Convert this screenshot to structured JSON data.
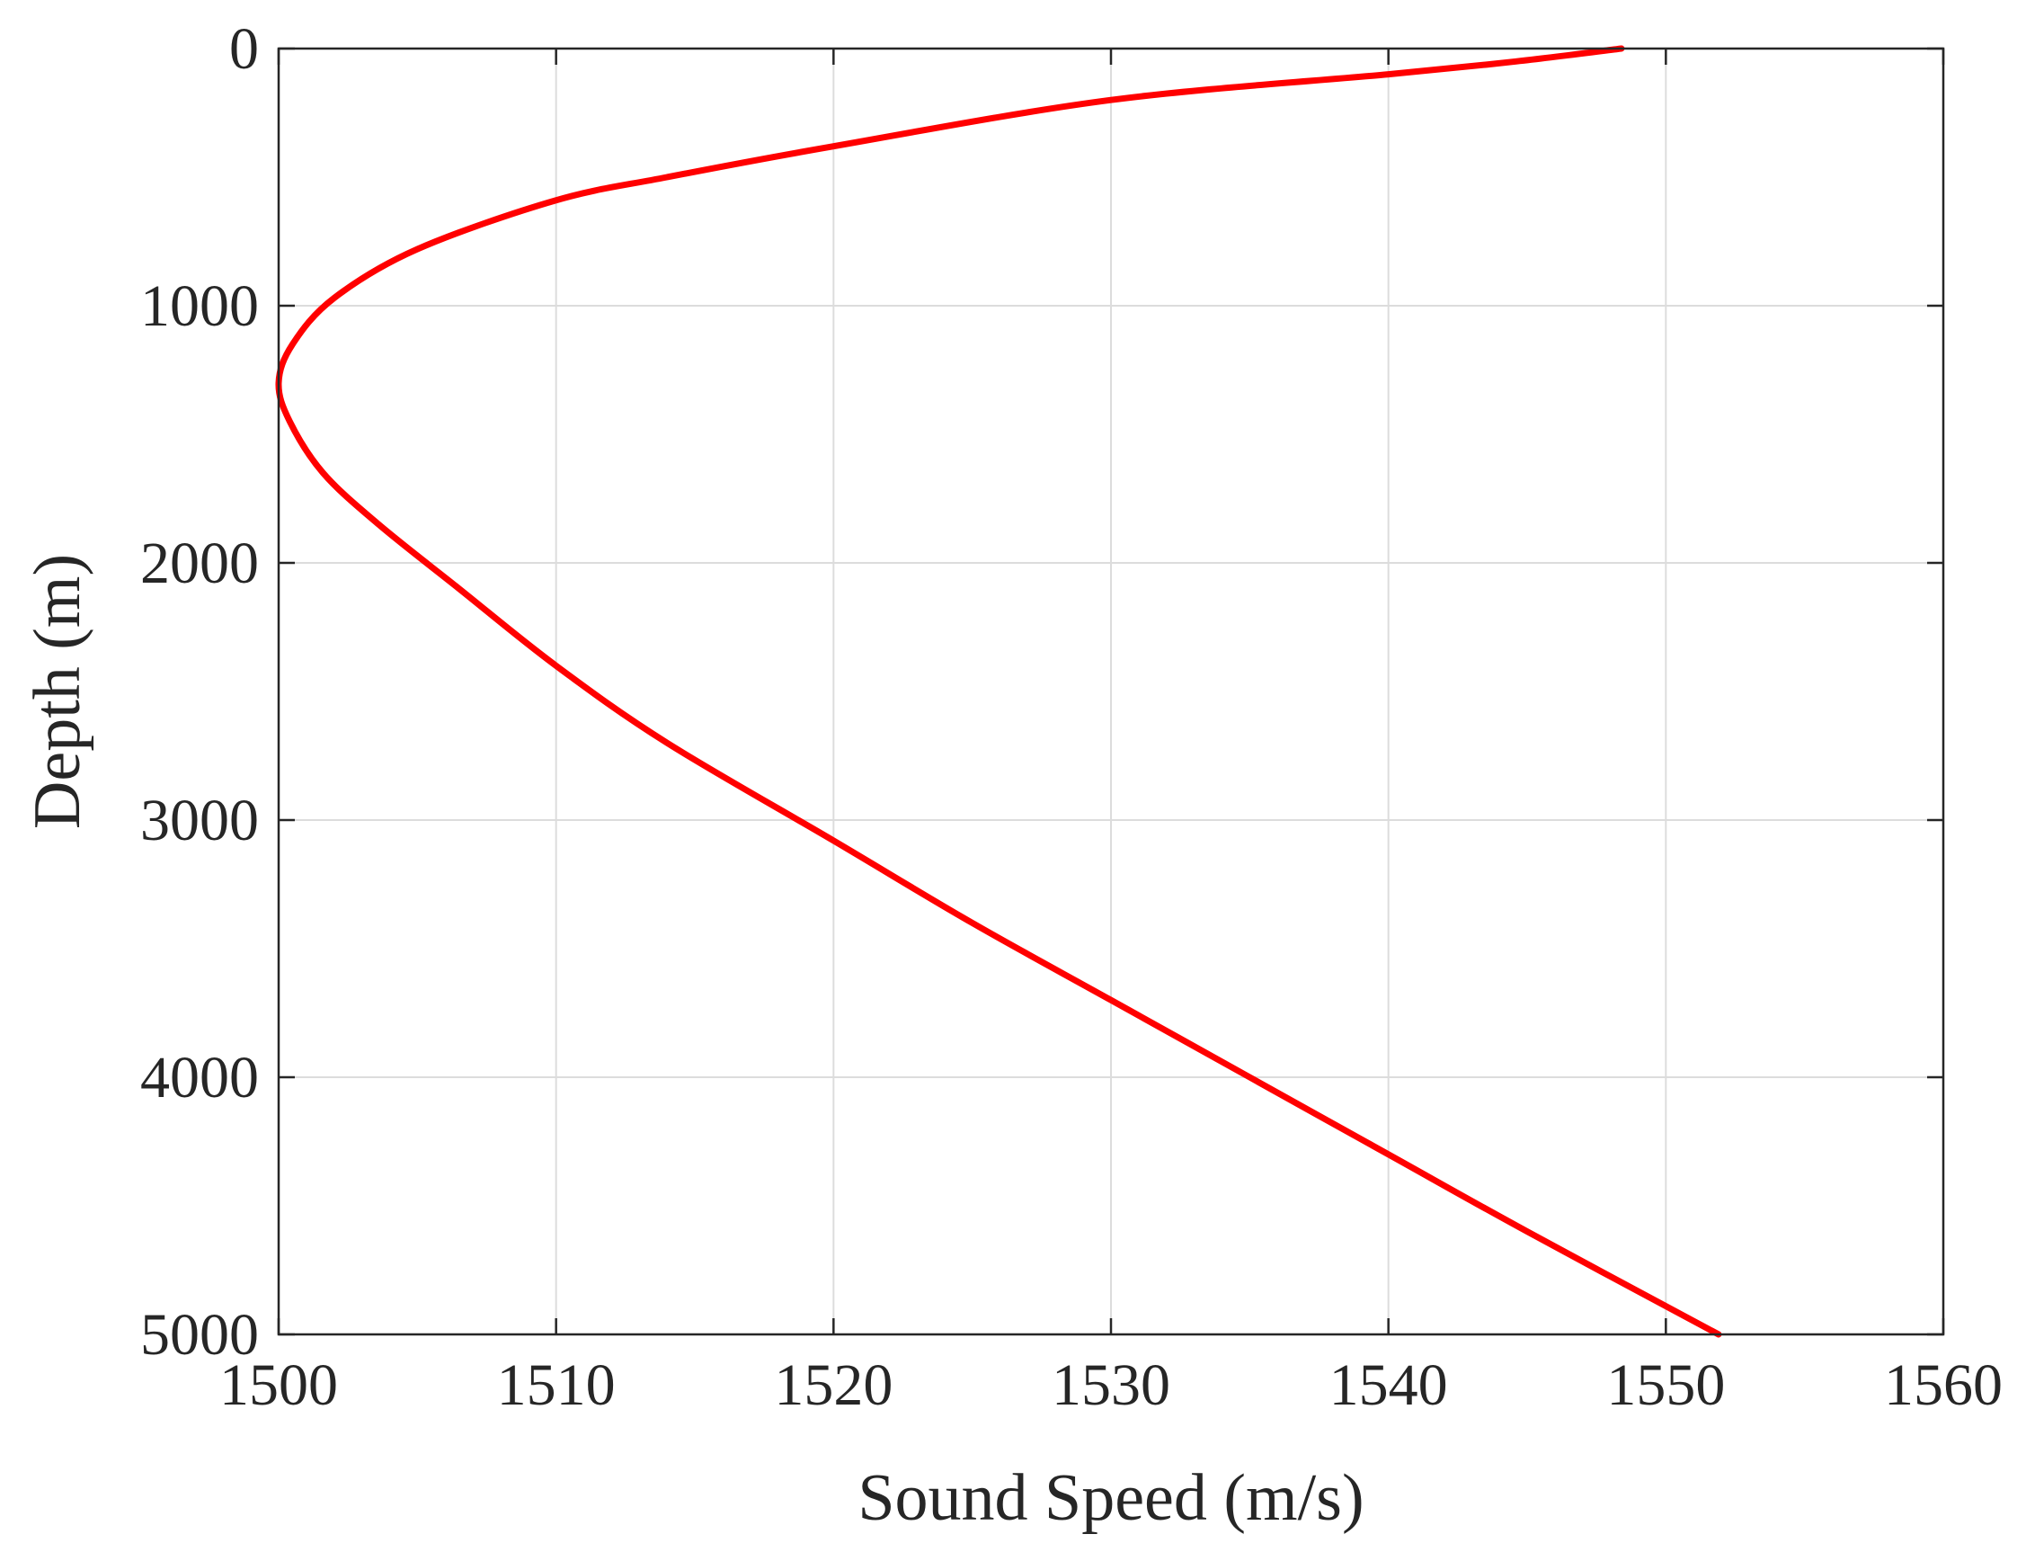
{
  "chart_data": {
    "type": "line",
    "title": "",
    "xlabel": "Sound Speed (m/s)",
    "ylabel": "Depth (m)",
    "xlim": [
      1500,
      1560
    ],
    "ylim": [
      0,
      5000
    ],
    "y_reversed": true,
    "grid": true,
    "xticks": [
      1500,
      1510,
      1520,
      1530,
      1540,
      1550,
      1560
    ],
    "yticks": [
      0,
      1000,
      2000,
      3000,
      4000,
      5000
    ],
    "xtick_labels": [
      "1500",
      "1510",
      "1520",
      "1530",
      "1540",
      "1550",
      "1560"
    ],
    "ytick_labels": [
      "0",
      "1000",
      "2000",
      "3000",
      "4000",
      "5000"
    ],
    "series": [
      {
        "color": "#ff0000",
        "x": [
          1548.4,
          1544.6,
          1540.0,
          1530.0,
          1520.0,
          1514.0,
          1510.0,
          1505.0,
          1502.0,
          1500.5,
          1500.0,
          1500.4,
          1501.6,
          1503.6,
          1506.5,
          1510.0,
          1514.0,
          1520.0,
          1525.0,
          1530.0,
          1535.0,
          1540.0,
          1545.0,
          1551.9
        ],
        "y": [
          0,
          50,
          100,
          200,
          380,
          500,
          590,
          780,
          970,
          1150,
          1300,
          1450,
          1650,
          1850,
          2100,
          2400,
          2700,
          3080,
          3400,
          3700,
          4000,
          4300,
          4600,
          5000
        ]
      }
    ]
  }
}
